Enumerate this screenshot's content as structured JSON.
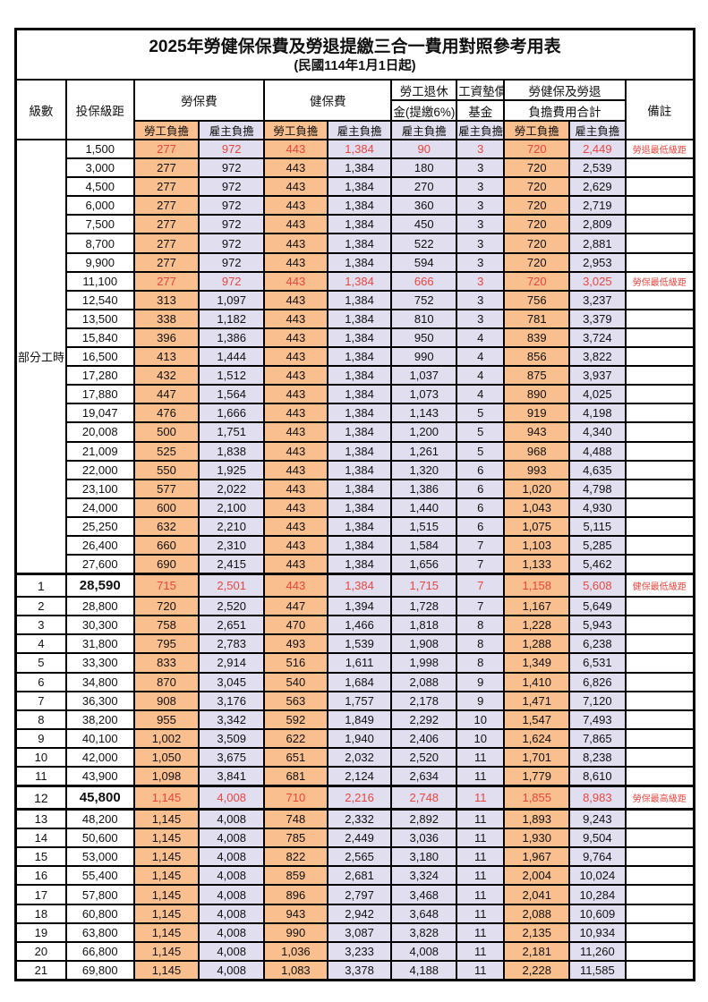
{
  "title": "2025年勞健保保費及勞退提繳三合一費用對照參考用表",
  "subtitle": "(民國114年1月1日起)",
  "colors": {
    "employee_fill": "#FABF8F",
    "employer_fill": "#E1DEF0",
    "highlight_text": "#E8463F",
    "border": "#000000"
  },
  "header": {
    "level": "級數",
    "bracket": "投保級距",
    "labor_insurance": "勞保費",
    "health_insurance": "健保費",
    "pension_line1": "勞工退休",
    "pension_line2": "金(提繳6%)",
    "wage_fund_line1": "工資墊償",
    "wage_fund_line2": "基金",
    "total_line1": "勞健保及勞退",
    "total_line2": "負擔費用合計",
    "remark": "備註",
    "employee": "勞工負擔",
    "employer": "雇主負擔"
  },
  "part_time": {
    "label": "部分工時",
    "rowspan": 23
  },
  "rows": [
    {
      "level": null,
      "bracket": "1,500",
      "v": [
        "277",
        "972",
        "443",
        "1,384",
        "90",
        "3",
        "720",
        "2,449"
      ],
      "remark": "勞退最低級距",
      "highlight": true
    },
    {
      "level": null,
      "bracket": "3,000",
      "v": [
        "277",
        "972",
        "443",
        "1,384",
        "180",
        "3",
        "720",
        "2,539"
      ],
      "remark": ""
    },
    {
      "level": null,
      "bracket": "4,500",
      "v": [
        "277",
        "972",
        "443",
        "1,384",
        "270",
        "3",
        "720",
        "2,629"
      ],
      "remark": ""
    },
    {
      "level": null,
      "bracket": "6,000",
      "v": [
        "277",
        "972",
        "443",
        "1,384",
        "360",
        "3",
        "720",
        "2,719"
      ],
      "remark": ""
    },
    {
      "level": null,
      "bracket": "7,500",
      "v": [
        "277",
        "972",
        "443",
        "1,384",
        "450",
        "3",
        "720",
        "2,809"
      ],
      "remark": ""
    },
    {
      "level": null,
      "bracket": "8,700",
      "v": [
        "277",
        "972",
        "443",
        "1,384",
        "522",
        "3",
        "720",
        "2,881"
      ],
      "remark": ""
    },
    {
      "level": null,
      "bracket": "9,900",
      "v": [
        "277",
        "972",
        "443",
        "1,384",
        "594",
        "3",
        "720",
        "2,953"
      ],
      "remark": ""
    },
    {
      "level": null,
      "bracket": "11,100",
      "v": [
        "277",
        "972",
        "443",
        "1,384",
        "666",
        "3",
        "720",
        "3,025"
      ],
      "remark": "勞保最低級距",
      "highlight": true
    },
    {
      "level": null,
      "bracket": "12,540",
      "v": [
        "313",
        "1,097",
        "443",
        "1,384",
        "752",
        "3",
        "756",
        "3,237"
      ],
      "remark": ""
    },
    {
      "level": null,
      "bracket": "13,500",
      "v": [
        "338",
        "1,182",
        "443",
        "1,384",
        "810",
        "3",
        "781",
        "3,379"
      ],
      "remark": ""
    },
    {
      "level": null,
      "bracket": "15,840",
      "v": [
        "396",
        "1,386",
        "443",
        "1,384",
        "950",
        "4",
        "839",
        "3,724"
      ],
      "remark": ""
    },
    {
      "level": null,
      "bracket": "16,500",
      "v": [
        "413",
        "1,444",
        "443",
        "1,384",
        "990",
        "4",
        "856",
        "3,822"
      ],
      "remark": ""
    },
    {
      "level": null,
      "bracket": "17,280",
      "v": [
        "432",
        "1,512",
        "443",
        "1,384",
        "1,037",
        "4",
        "875",
        "3,937"
      ],
      "remark": ""
    },
    {
      "level": null,
      "bracket": "17,880",
      "v": [
        "447",
        "1,564",
        "443",
        "1,384",
        "1,073",
        "4",
        "890",
        "4,025"
      ],
      "remark": ""
    },
    {
      "level": null,
      "bracket": "19,047",
      "v": [
        "476",
        "1,666",
        "443",
        "1,384",
        "1,143",
        "5",
        "919",
        "4,198"
      ],
      "remark": ""
    },
    {
      "level": null,
      "bracket": "20,008",
      "v": [
        "500",
        "1,751",
        "443",
        "1,384",
        "1,200",
        "5",
        "943",
        "4,340"
      ],
      "remark": ""
    },
    {
      "level": null,
      "bracket": "21,009",
      "v": [
        "525",
        "1,838",
        "443",
        "1,384",
        "1,261",
        "5",
        "968",
        "4,488"
      ],
      "remark": ""
    },
    {
      "level": null,
      "bracket": "22,000",
      "v": [
        "550",
        "1,925",
        "443",
        "1,384",
        "1,320",
        "6",
        "993",
        "4,635"
      ],
      "remark": ""
    },
    {
      "level": null,
      "bracket": "23,100",
      "v": [
        "577",
        "2,022",
        "443",
        "1,384",
        "1,386",
        "6",
        "1,020",
        "4,798"
      ],
      "remark": ""
    },
    {
      "level": null,
      "bracket": "24,000",
      "v": [
        "600",
        "2,100",
        "443",
        "1,384",
        "1,440",
        "6",
        "1,043",
        "4,930"
      ],
      "remark": ""
    },
    {
      "level": null,
      "bracket": "25,250",
      "v": [
        "632",
        "2,210",
        "443",
        "1,384",
        "1,515",
        "6",
        "1,075",
        "5,115"
      ],
      "remark": ""
    },
    {
      "level": null,
      "bracket": "26,400",
      "v": [
        "660",
        "2,310",
        "443",
        "1,384",
        "1,584",
        "7",
        "1,103",
        "5,285"
      ],
      "remark": ""
    },
    {
      "level": null,
      "bracket": "27,600",
      "v": [
        "690",
        "2,415",
        "443",
        "1,384",
        "1,656",
        "7",
        "1,133",
        "5,462"
      ],
      "remark": ""
    },
    {
      "level": "1",
      "bracket": "28,590",
      "v": [
        "715",
        "2,501",
        "443",
        "1,384",
        "1,715",
        "7",
        "1,158",
        "5,608"
      ],
      "remark": "健保最低級距",
      "highlight": true,
      "emph": true,
      "thick_top": true
    },
    {
      "level": "2",
      "bracket": "28,800",
      "v": [
        "720",
        "2,520",
        "447",
        "1,394",
        "1,728",
        "7",
        "1,167",
        "5,649"
      ],
      "remark": ""
    },
    {
      "level": "3",
      "bracket": "30,300",
      "v": [
        "758",
        "2,651",
        "470",
        "1,466",
        "1,818",
        "8",
        "1,228",
        "5,943"
      ],
      "remark": ""
    },
    {
      "level": "4",
      "bracket": "31,800",
      "v": [
        "795",
        "2,783",
        "493",
        "1,539",
        "1,908",
        "8",
        "1,288",
        "6,238"
      ],
      "remark": ""
    },
    {
      "level": "5",
      "bracket": "33,300",
      "v": [
        "833",
        "2,914",
        "516",
        "1,611",
        "1,998",
        "8",
        "1,349",
        "6,531"
      ],
      "remark": ""
    },
    {
      "level": "6",
      "bracket": "34,800",
      "v": [
        "870",
        "3,045",
        "540",
        "1,684",
        "2,088",
        "9",
        "1,410",
        "6,826"
      ],
      "remark": ""
    },
    {
      "level": "7",
      "bracket": "36,300",
      "v": [
        "908",
        "3,176",
        "563",
        "1,757",
        "2,178",
        "9",
        "1,471",
        "7,120"
      ],
      "remark": ""
    },
    {
      "level": "8",
      "bracket": "38,200",
      "v": [
        "955",
        "3,342",
        "592",
        "1,849",
        "2,292",
        "10",
        "1,547",
        "7,493"
      ],
      "remark": ""
    },
    {
      "level": "9",
      "bracket": "40,100",
      "v": [
        "1,002",
        "3,509",
        "622",
        "1,940",
        "2,406",
        "10",
        "1,624",
        "7,865"
      ],
      "remark": ""
    },
    {
      "level": "10",
      "bracket": "42,000",
      "v": [
        "1,050",
        "3,675",
        "651",
        "2,032",
        "2,520",
        "11",
        "1,701",
        "8,238"
      ],
      "remark": ""
    },
    {
      "level": "11",
      "bracket": "43,900",
      "v": [
        "1,098",
        "3,841",
        "681",
        "2,124",
        "2,634",
        "11",
        "1,779",
        "8,610"
      ],
      "remark": ""
    },
    {
      "level": "12",
      "bracket": "45,800",
      "v": [
        "1,145",
        "4,008",
        "710",
        "2,216",
        "2,748",
        "11",
        "1,855",
        "8,983"
      ],
      "remark": "勞保最高級距",
      "highlight": true,
      "emph": true,
      "thick_top": true,
      "thick_bottom": true
    },
    {
      "level": "13",
      "bracket": "48,200",
      "v": [
        "1,145",
        "4,008",
        "748",
        "2,332",
        "2,892",
        "11",
        "1,893",
        "9,243"
      ],
      "remark": ""
    },
    {
      "level": "14",
      "bracket": "50,600",
      "v": [
        "1,145",
        "4,008",
        "785",
        "2,449",
        "3,036",
        "11",
        "1,930",
        "9,504"
      ],
      "remark": ""
    },
    {
      "level": "15",
      "bracket": "53,000",
      "v": [
        "1,145",
        "4,008",
        "822",
        "2,565",
        "3,180",
        "11",
        "1,967",
        "9,764"
      ],
      "remark": ""
    },
    {
      "level": "16",
      "bracket": "55,400",
      "v": [
        "1,145",
        "4,008",
        "859",
        "2,681",
        "3,324",
        "11",
        "2,004",
        "10,024"
      ],
      "remark": ""
    },
    {
      "level": "17",
      "bracket": "57,800",
      "v": [
        "1,145",
        "4,008",
        "896",
        "2,797",
        "3,468",
        "11",
        "2,041",
        "10,284"
      ],
      "remark": ""
    },
    {
      "level": "18",
      "bracket": "60,800",
      "v": [
        "1,145",
        "4,008",
        "943",
        "2,942",
        "3,648",
        "11",
        "2,088",
        "10,609"
      ],
      "remark": ""
    },
    {
      "level": "19",
      "bracket": "63,800",
      "v": [
        "1,145",
        "4,008",
        "990",
        "3,087",
        "3,828",
        "11",
        "2,135",
        "10,934"
      ],
      "remark": ""
    },
    {
      "level": "20",
      "bracket": "66,800",
      "v": [
        "1,145",
        "4,008",
        "1,036",
        "3,233",
        "4,008",
        "11",
        "2,181",
        "11,260"
      ],
      "remark": ""
    },
    {
      "level": "21",
      "bracket": "69,800",
      "v": [
        "1,145",
        "4,008",
        "1,083",
        "3,378",
        "4,188",
        "11",
        "2,228",
        "11,585"
      ],
      "remark": ""
    }
  ]
}
